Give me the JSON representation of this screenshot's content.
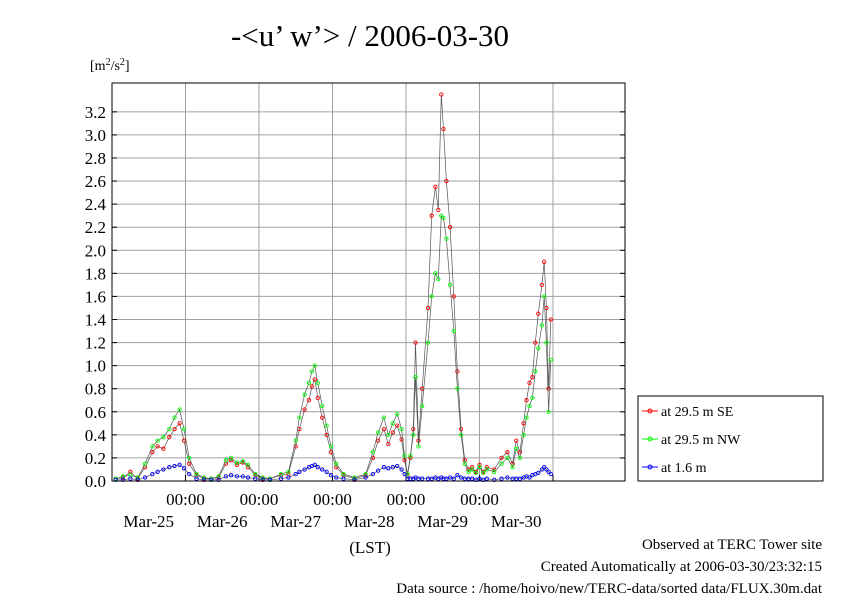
{
  "chart_data": {
    "type": "line",
    "title": "-<u’ w’> / 2006-03-30",
    "unit_base": "[m",
    "unit_sup1": "2",
    "unit_mid": "/s",
    "unit_sup2": "2",
    "unit_end": "]",
    "xlabel": "(LST)",
    "x_ticks": [
      "00:00",
      "00:00",
      "00:00",
      "00:00",
      "00:00"
    ],
    "x_day_labels": [
      "Mar-25",
      "Mar-26",
      "Mar-27",
      "Mar-28",
      "Mar-29",
      "Mar-30"
    ],
    "x_range_days": [
      24.0,
      30.98
    ],
    "ylim": [
      0,
      3.45
    ],
    "y_ticks": [
      0.0,
      0.2,
      0.4,
      0.6,
      0.8,
      1.0,
      1.2,
      1.4,
      1.6,
      1.8,
      2.0,
      2.2,
      2.4,
      2.6,
      2.8,
      3.0,
      3.2
    ],
    "y_tick_labels": [
      "0.0",
      "0.2",
      "0.4",
      "0.6",
      "0.8",
      "1.0",
      "1.2",
      "1.4",
      "1.6",
      "1.8",
      "2.0",
      "2.2",
      "2.4",
      "2.6",
      "2.8",
      "3.0",
      "3.2"
    ],
    "grid": true,
    "legend_position": "right",
    "series": [
      {
        "name": "at 29.5 m SE",
        "color": "#ff0000",
        "points": [
          [
            24.05,
            0.02
          ],
          [
            24.15,
            0.03
          ],
          [
            24.25,
            0.08
          ],
          [
            24.35,
            0.02
          ],
          [
            24.45,
            0.12
          ],
          [
            24.55,
            0.25
          ],
          [
            24.62,
            0.3
          ],
          [
            24.7,
            0.28
          ],
          [
            24.78,
            0.38
          ],
          [
            24.85,
            0.45
          ],
          [
            24.92,
            0.5
          ],
          [
            24.98,
            0.35
          ],
          [
            25.05,
            0.15
          ],
          [
            25.15,
            0.05
          ],
          [
            25.25,
            0.02
          ],
          [
            25.35,
            0.02
          ],
          [
            25.45,
            0.03
          ],
          [
            25.55,
            0.15
          ],
          [
            25.62,
            0.18
          ],
          [
            25.7,
            0.14
          ],
          [
            25.78,
            0.16
          ],
          [
            25.85,
            0.12
          ],
          [
            25.95,
            0.05
          ],
          [
            26.05,
            0.02
          ],
          [
            26.15,
            0.02
          ],
          [
            26.3,
            0.05
          ],
          [
            26.4,
            0.06
          ],
          [
            26.5,
            0.3
          ],
          [
            26.55,
            0.45
          ],
          [
            26.62,
            0.62
          ],
          [
            26.68,
            0.7
          ],
          [
            26.72,
            0.82
          ],
          [
            26.76,
            0.88
          ],
          [
            26.8,
            0.72
          ],
          [
            26.86,
            0.55
          ],
          [
            26.92,
            0.4
          ],
          [
            26.98,
            0.25
          ],
          [
            27.05,
            0.12
          ],
          [
            27.15,
            0.05
          ],
          [
            27.3,
            0.02
          ],
          [
            27.45,
            0.05
          ],
          [
            27.55,
            0.2
          ],
          [
            27.62,
            0.35
          ],
          [
            27.7,
            0.45
          ],
          [
            27.76,
            0.32
          ],
          [
            27.82,
            0.42
          ],
          [
            27.88,
            0.48
          ],
          [
            27.94,
            0.36
          ],
          [
            27.98,
            0.18
          ],
          [
            28.02,
            0.05
          ],
          [
            28.06,
            0.2
          ],
          [
            28.1,
            0.45
          ],
          [
            28.13,
            1.2
          ],
          [
            28.17,
            0.35
          ],
          [
            28.22,
            0.8
          ],
          [
            28.3,
            1.5
          ],
          [
            28.35,
            2.3
          ],
          [
            28.4,
            2.55
          ],
          [
            28.44,
            2.35
          ],
          [
            28.48,
            3.35
          ],
          [
            28.51,
            3.05
          ],
          [
            28.55,
            2.6
          ],
          [
            28.6,
            2.2
          ],
          [
            28.65,
            1.6
          ],
          [
            28.7,
            0.95
          ],
          [
            28.75,
            0.45
          ],
          [
            28.8,
            0.18
          ],
          [
            28.85,
            0.1
          ],
          [
            28.9,
            0.12
          ],
          [
            28.95,
            0.08
          ],
          [
            29.0,
            0.14
          ],
          [
            29.05,
            0.08
          ],
          [
            29.1,
            0.12
          ],
          [
            29.2,
            0.1
          ],
          [
            29.3,
            0.2
          ],
          [
            29.38,
            0.25
          ],
          [
            29.45,
            0.15
          ],
          [
            29.5,
            0.35
          ],
          [
            29.55,
            0.25
          ],
          [
            29.6,
            0.5
          ],
          [
            29.64,
            0.7
          ],
          [
            29.68,
            0.85
          ],
          [
            29.72,
            0.9
          ],
          [
            29.76,
            1.2
          ],
          [
            29.8,
            1.45
          ],
          [
            29.85,
            1.7
          ],
          [
            29.88,
            1.9
          ],
          [
            29.91,
            1.5
          ],
          [
            29.94,
            0.8
          ],
          [
            29.97,
            1.4
          ]
        ]
      },
      {
        "name": "at 29.5 m NW",
        "color": "#00ff00",
        "points": [
          [
            24.05,
            0.02
          ],
          [
            24.15,
            0.04
          ],
          [
            24.25,
            0.05
          ],
          [
            24.35,
            0.03
          ],
          [
            24.45,
            0.15
          ],
          [
            24.55,
            0.3
          ],
          [
            24.62,
            0.35
          ],
          [
            24.7,
            0.38
          ],
          [
            24.78,
            0.45
          ],
          [
            24.85,
            0.55
          ],
          [
            24.92,
            0.62
          ],
          [
            24.98,
            0.45
          ],
          [
            25.05,
            0.2
          ],
          [
            25.15,
            0.06
          ],
          [
            25.25,
            0.03
          ],
          [
            25.35,
            0.02
          ],
          [
            25.45,
            0.04
          ],
          [
            25.55,
            0.18
          ],
          [
            25.62,
            0.2
          ],
          [
            25.7,
            0.16
          ],
          [
            25.78,
            0.17
          ],
          [
            25.85,
            0.14
          ],
          [
            25.95,
            0.06
          ],
          [
            26.05,
            0.03
          ],
          [
            26.15,
            0.02
          ],
          [
            26.3,
            0.06
          ],
          [
            26.4,
            0.08
          ],
          [
            26.5,
            0.35
          ],
          [
            26.55,
            0.55
          ],
          [
            26.62,
            0.75
          ],
          [
            26.68,
            0.85
          ],
          [
            26.72,
            0.95
          ],
          [
            26.76,
            1.0
          ],
          [
            26.8,
            0.85
          ],
          [
            26.86,
            0.65
          ],
          [
            26.92,
            0.48
          ],
          [
            26.98,
            0.3
          ],
          [
            27.05,
            0.15
          ],
          [
            27.15,
            0.06
          ],
          [
            27.3,
            0.03
          ],
          [
            27.45,
            0.06
          ],
          [
            27.55,
            0.25
          ],
          [
            27.62,
            0.42
          ],
          [
            27.7,
            0.55
          ],
          [
            27.76,
            0.4
          ],
          [
            27.82,
            0.5
          ],
          [
            27.88,
            0.58
          ],
          [
            27.94,
            0.45
          ],
          [
            27.98,
            0.22
          ],
          [
            28.02,
            0.06
          ],
          [
            28.06,
            0.22
          ],
          [
            28.1,
            0.4
          ],
          [
            28.13,
            0.9
          ],
          [
            28.17,
            0.3
          ],
          [
            28.22,
            0.65
          ],
          [
            28.3,
            1.2
          ],
          [
            28.35,
            1.6
          ],
          [
            28.4,
            1.8
          ],
          [
            28.44,
            1.75
          ],
          [
            28.48,
            2.3
          ],
          [
            28.51,
            2.28
          ],
          [
            28.55,
            2.1
          ],
          [
            28.6,
            1.7
          ],
          [
            28.65,
            1.3
          ],
          [
            28.7,
            0.8
          ],
          [
            28.75,
            0.4
          ],
          [
            28.8,
            0.15
          ],
          [
            28.85,
            0.08
          ],
          [
            28.9,
            0.1
          ],
          [
            28.95,
            0.07
          ],
          [
            29.0,
            0.12
          ],
          [
            29.05,
            0.07
          ],
          [
            29.1,
            0.1
          ],
          [
            29.2,
            0.08
          ],
          [
            29.3,
            0.15
          ],
          [
            29.38,
            0.2
          ],
          [
            29.45,
            0.12
          ],
          [
            29.5,
            0.28
          ],
          [
            29.55,
            0.2
          ],
          [
            29.6,
            0.4
          ],
          [
            29.64,
            0.55
          ],
          [
            29.68,
            0.65
          ],
          [
            29.72,
            0.72
          ],
          [
            29.76,
            0.95
          ],
          [
            29.8,
            1.15
          ],
          [
            29.85,
            1.35
          ],
          [
            29.88,
            1.6
          ],
          [
            29.91,
            1.2
          ],
          [
            29.94,
            0.6
          ],
          [
            29.97,
            1.05
          ]
        ]
      },
      {
        "name": "at 1.6 m",
        "color": "#0000ff",
        "points": [
          [
            24.05,
            0.01
          ],
          [
            24.15,
            0.01
          ],
          [
            24.25,
            0.02
          ],
          [
            24.35,
            0.01
          ],
          [
            24.45,
            0.03
          ],
          [
            24.55,
            0.06
          ],
          [
            24.62,
            0.08
          ],
          [
            24.7,
            0.1
          ],
          [
            24.78,
            0.12
          ],
          [
            24.85,
            0.13
          ],
          [
            24.92,
            0.14
          ],
          [
            24.98,
            0.11
          ],
          [
            25.05,
            0.06
          ],
          [
            25.15,
            0.02
          ],
          [
            25.25,
            0.01
          ],
          [
            25.35,
            0.01
          ],
          [
            25.45,
            0.01
          ],
          [
            25.55,
            0.04
          ],
          [
            25.62,
            0.05
          ],
          [
            25.7,
            0.04
          ],
          [
            25.78,
            0.04
          ],
          [
            25.85,
            0.03
          ],
          [
            25.95,
            0.02
          ],
          [
            26.05,
            0.01
          ],
          [
            26.15,
            0.01
          ],
          [
            26.3,
            0.02
          ],
          [
            26.4,
            0.03
          ],
          [
            26.5,
            0.06
          ],
          [
            26.55,
            0.08
          ],
          [
            26.62,
            0.1
          ],
          [
            26.68,
            0.12
          ],
          [
            26.72,
            0.13
          ],
          [
            26.76,
            0.14
          ],
          [
            26.8,
            0.12
          ],
          [
            26.86,
            0.1
          ],
          [
            26.92,
            0.08
          ],
          [
            26.98,
            0.05
          ],
          [
            27.05,
            0.03
          ],
          [
            27.15,
            0.02
          ],
          [
            27.3,
            0.01
          ],
          [
            27.45,
            0.03
          ],
          [
            27.55,
            0.06
          ],
          [
            27.62,
            0.09
          ],
          [
            27.7,
            0.12
          ],
          [
            27.76,
            0.11
          ],
          [
            27.82,
            0.12
          ],
          [
            27.88,
            0.13
          ],
          [
            27.94,
            0.1
          ],
          [
            27.98,
            0.06
          ],
          [
            28.02,
            0.02
          ],
          [
            28.06,
            0.02
          ],
          [
            28.1,
            0.02
          ],
          [
            28.13,
            0.03
          ],
          [
            28.17,
            0.02
          ],
          [
            28.22,
            0.02
          ],
          [
            28.3,
            0.02
          ],
          [
            28.35,
            0.02
          ],
          [
            28.4,
            0.03
          ],
          [
            28.44,
            0.02
          ],
          [
            28.48,
            0.03
          ],
          [
            28.51,
            0.02
          ],
          [
            28.55,
            0.02
          ],
          [
            28.6,
            0.03
          ],
          [
            28.65,
            0.02
          ],
          [
            28.7,
            0.05
          ],
          [
            28.75,
            0.03
          ],
          [
            28.8,
            0.02
          ],
          [
            28.85,
            0.02
          ],
          [
            28.9,
            0.02
          ],
          [
            28.95,
            0.01
          ],
          [
            29.0,
            0.02
          ],
          [
            29.05,
            0.01
          ],
          [
            29.1,
            0.02
          ],
          [
            29.2,
            0.01
          ],
          [
            29.3,
            0.02
          ],
          [
            29.38,
            0.03
          ],
          [
            29.45,
            0.02
          ],
          [
            29.5,
            0.02
          ],
          [
            29.55,
            0.02
          ],
          [
            29.6,
            0.03
          ],
          [
            29.64,
            0.04
          ],
          [
            29.68,
            0.03
          ],
          [
            29.72,
            0.05
          ],
          [
            29.76,
            0.06
          ],
          [
            29.8,
            0.07
          ],
          [
            29.85,
            0.1
          ],
          [
            29.88,
            0.12
          ],
          [
            29.91,
            0.1
          ],
          [
            29.94,
            0.08
          ],
          [
            29.97,
            0.06
          ]
        ]
      }
    ]
  },
  "footer": {
    "observed": "Observed at TERC Tower site",
    "created": "Created Automatically at 2006-03-30/23:32:15",
    "source": "Data source : /home/hoivo/new/TERC-data/sorted  data/FLUX.30m.dat"
  }
}
